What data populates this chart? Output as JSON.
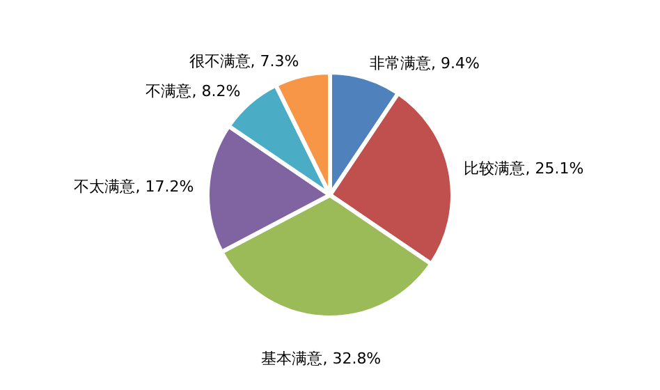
{
  "chart_data": {
    "type": "pie",
    "categories": [
      "非常满意",
      "比较满意",
      "基本满意",
      "不太满意",
      "不满意",
      "很不满意"
    ],
    "values": [
      9.4,
      25.1,
      32.8,
      17.2,
      8.2,
      7.3
    ],
    "value_labels": [
      "9.4%",
      "25.1%",
      "32.8%",
      "17.2%",
      "8.2%",
      "7.3%"
    ],
    "colors": [
      "#4f81bd",
      "#c0504d",
      "#9bbb59",
      "#8064a2",
      "#4bacc6",
      "#f79646"
    ]
  }
}
